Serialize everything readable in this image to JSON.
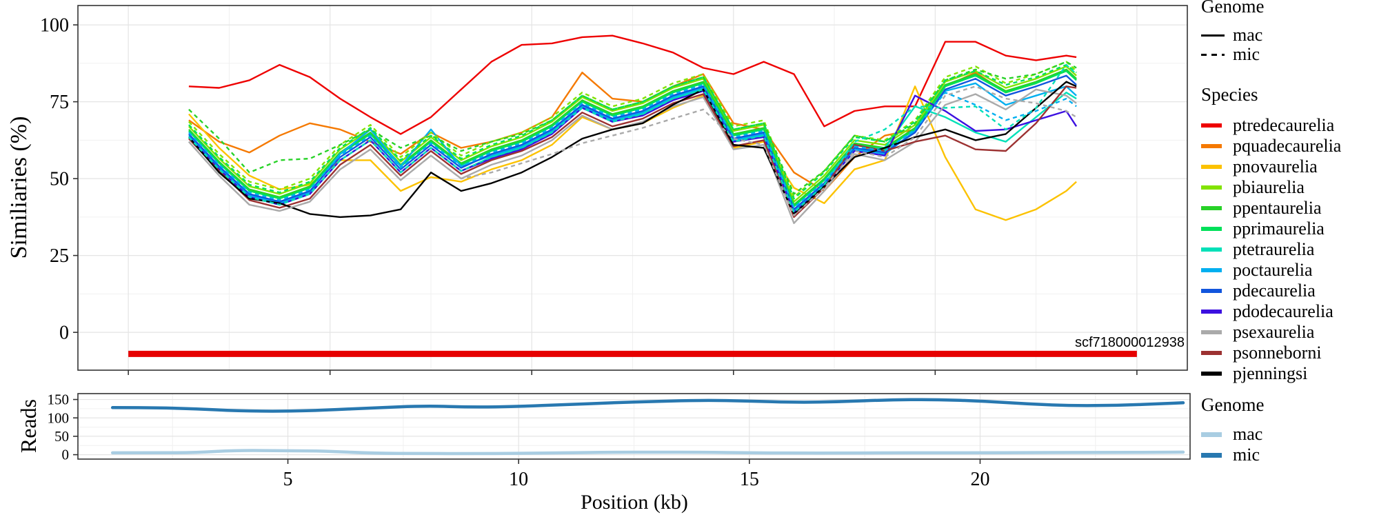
{
  "annotation": {
    "text": "scf718000012938",
    "color": "#e60000"
  },
  "legends": {
    "genome_top": {
      "title": "Genome",
      "items": [
        {
          "label": "mac",
          "style": "solid"
        },
        {
          "label": "mic",
          "style": "dashed"
        }
      ]
    },
    "species": {
      "title": "Species",
      "items": [
        {
          "label": "ptredecaurelia",
          "color": "#ee0000"
        },
        {
          "label": "pquadecaurelia",
          "color": "#f57900"
        },
        {
          "label": "pnovaurelia",
          "color": "#fcc200"
        },
        {
          "label": "pbiaurelia",
          "color": "#82e300"
        },
        {
          "label": "ppentaurelia",
          "color": "#28d228"
        },
        {
          "label": "pprimaurelia",
          "color": "#00e05a"
        },
        {
          "label": "ptetraurelia",
          "color": "#00e0b8"
        },
        {
          "label": "poctaurelia",
          "color": "#00aff0"
        },
        {
          "label": "pdecaurelia",
          "color": "#1155dd"
        },
        {
          "label": "pdodecaurelia",
          "color": "#3c10e0"
        },
        {
          "label": "psexaurelia",
          "color": "#aaaaaa"
        },
        {
          "label": "psonneborni",
          "color": "#9c3131"
        },
        {
          "label": "pjenningsi",
          "color": "#000000"
        }
      ]
    },
    "genome_bottom": {
      "title": "Genome",
      "items": [
        {
          "label": "mac",
          "color": "#a9cde2"
        },
        {
          "label": "mic",
          "color": "#2878b0"
        }
      ]
    }
  },
  "chart_data": [
    {
      "type": "line",
      "panel": "similarity",
      "ylabel": "Similiaries (%)",
      "xlabel": "",
      "y_ticks": [
        0,
        25,
        50,
        75,
        100
      ],
      "y_minor": [
        12.5,
        37.5,
        62.5,
        87.5
      ],
      "x_ticks": [
        0,
        5,
        10,
        15,
        20,
        25
      ],
      "x_minor": [
        2.5,
        7.5,
        12.5,
        17.5,
        22.5
      ],
      "x_tick_labels_shown": false,
      "ylim": [
        -12.3,
        106.3
      ],
      "xlim": [
        -1.25,
        26.25
      ],
      "grid": true,
      "legend_position": "right",
      "x": [
        1.5,
        2.25,
        3,
        3.75,
        4.5,
        5.25,
        6,
        6.75,
        7.5,
        8.25,
        9,
        9.75,
        10.5,
        11.25,
        12,
        12.75,
        13.5,
        14.25,
        15,
        15.75,
        16.5,
        17.25,
        18,
        18.75,
        19.5,
        20.25,
        21,
        21.75,
        22.5,
        23.25,
        23.5
      ],
      "series": [
        {
          "species": "ptredecaurelia",
          "genome": "mac",
          "color": "#ee0000",
          "values": [
            80,
            79.5,
            82,
            87,
            83,
            76,
            70,
            64.5,
            70,
            79,
            88,
            93.5,
            94,
            96,
            96.5,
            94,
            91,
            86,
            84,
            88,
            84,
            67,
            72,
            73.5,
            73.5,
            94.5,
            94.5,
            90,
            88.5,
            90,
            89.5
          ]
        },
        {
          "species": "pquadecaurelia",
          "genome": "mac",
          "color": "#f57900",
          "values": [
            69,
            62,
            58.5,
            64,
            68,
            66,
            62,
            58,
            65,
            60,
            62,
            65,
            70,
            84.5,
            76,
            75,
            80,
            84,
            68,
            66,
            52,
            46,
            57,
            64,
            66,
            80,
            84.5,
            78,
            81,
            85.5,
            82.5
          ]
        },
        {
          "species": "pnovaurelia",
          "genome": "mac",
          "color": "#fcc200",
          "values": [
            71,
            60,
            51,
            46.5,
            48,
            56,
            56,
            46,
            50.5,
            49,
            53,
            56,
            61,
            70,
            66,
            68,
            73,
            77,
            60,
            62,
            47,
            42,
            53,
            56,
            80,
            57,
            40,
            36.5,
            40,
            46,
            49
          ]
        },
        {
          "species": "pbiaurelia",
          "genome": "mac",
          "color": "#82e300",
          "values": [
            67,
            56.5,
            47.5,
            45,
            48.5,
            59.5,
            66,
            55.5,
            63.5,
            56,
            60.5,
            63.5,
            68.5,
            76.5,
            72,
            74.5,
            79.5,
            82.5,
            65.5,
            67.5,
            42.5,
            51,
            62.5,
            61,
            67.5,
            81.5,
            85,
            79.5,
            82.5,
            86.5,
            83.5
          ]
        },
        {
          "species": "ppentaurelia",
          "genome": "mac",
          "color": "#28d228",
          "values": [
            66,
            55.5,
            46.5,
            44,
            47.5,
            58.5,
            65,
            54.5,
            62.5,
            55,
            59.5,
            62.5,
            67.5,
            75.5,
            71,
            73.5,
            78.5,
            81.5,
            64.5,
            66.5,
            41.5,
            50,
            61.5,
            60,
            66.5,
            80.5,
            84,
            78.5,
            81.5,
            85.5,
            82.5
          ]
        },
        {
          "species": "pprimaurelia",
          "genome": "mac",
          "color": "#00e05a",
          "values": [
            65.5,
            55,
            46,
            43.5,
            47,
            58,
            64.5,
            54,
            62,
            54.5,
            59,
            62,
            67,
            75,
            70.5,
            73,
            78,
            81,
            64,
            66,
            41,
            49.5,
            61,
            59.5,
            66,
            80,
            83.5,
            78,
            81,
            85,
            82
          ]
        },
        {
          "species": "ptetraurelia",
          "genome": "mac",
          "color": "#00e0b8",
          "values": [
            63.5,
            53,
            44,
            41.5,
            45,
            56,
            62.5,
            52,
            60,
            52.5,
            57,
            60,
            65,
            73,
            68.5,
            71,
            76,
            79,
            62,
            64,
            39,
            47.5,
            59,
            60,
            73.5,
            70,
            65,
            62,
            70,
            78,
            76
          ]
        },
        {
          "species": "poctaurelia",
          "genome": "mac",
          "color": "#00aff0",
          "values": [
            64,
            53.5,
            44.5,
            42,
            45.5,
            58,
            66,
            54,
            66,
            54,
            57.5,
            60.5,
            65.5,
            73.5,
            69,
            71.5,
            76.5,
            79.5,
            62.5,
            64.5,
            39.5,
            48,
            59.5,
            58,
            65.5,
            78.5,
            81,
            74,
            77,
            80,
            77
          ]
        },
        {
          "species": "pdecaurelia",
          "genome": "mac",
          "color": "#1155dd",
          "values": [
            64.5,
            54,
            45,
            42.5,
            46,
            57,
            63.5,
            53,
            61,
            53.5,
            58,
            61,
            66,
            74,
            69.5,
            72,
            77,
            80,
            63,
            65,
            40,
            48.5,
            60,
            58.5,
            65,
            79,
            82.5,
            77,
            80,
            83.5,
            80.5
          ]
        },
        {
          "species": "pdodecaurelia",
          "genome": "mac",
          "color": "#3c10e0",
          "values": [
            63.5,
            53,
            44,
            41.5,
            45,
            56,
            62.5,
            52,
            60,
            52.5,
            56.5,
            59.5,
            64.5,
            73,
            68.5,
            70.5,
            75.5,
            78.5,
            62,
            63.5,
            39,
            47.5,
            59,
            57.5,
            77,
            72,
            65.5,
            66,
            69,
            72,
            67
          ]
        },
        {
          "species": "psexaurelia",
          "genome": "mac",
          "color": "#aaaaaa",
          "values": [
            62,
            51,
            41.5,
            39.5,
            42.5,
            53,
            59.5,
            49.5,
            57.5,
            50,
            54.5,
            57.5,
            62.5,
            70.5,
            66,
            68.5,
            73.5,
            76.5,
            59.5,
            61,
            35.5,
            46,
            58,
            56,
            62,
            74,
            77.5,
            72.5,
            79,
            77,
            74.5
          ]
        },
        {
          "species": "psonneborni",
          "genome": "mac",
          "color": "#9c3131",
          "values": [
            63,
            52.5,
            43,
            40.5,
            43.5,
            54.5,
            61,
            51,
            59,
            51.5,
            56,
            59,
            63.5,
            71.5,
            67,
            69.5,
            74.5,
            77.5,
            60.5,
            62.5,
            37.5,
            47,
            61,
            59,
            62,
            64,
            59.5,
            59,
            68,
            80,
            79.5
          ]
        },
        {
          "species": "pjenningsi",
          "genome": "mac",
          "color": "#000000",
          "values": [
            63.5,
            52,
            43.5,
            42,
            38.5,
            37.5,
            38,
            40,
            52,
            46,
            48.5,
            52,
            57,
            63,
            66,
            68,
            74,
            79,
            61,
            60,
            38.5,
            47.5,
            57,
            60,
            63.5,
            66,
            62.5,
            64.5,
            73,
            81.5,
            80
          ]
        },
        {
          "species": "pbiaurelia",
          "genome": "mic",
          "color": "#82e300",
          "values": [
            68.5,
            58,
            49,
            46.5,
            50,
            61,
            67.5,
            57,
            65,
            57.5,
            62,
            65,
            70,
            78,
            73.5,
            76,
            81,
            84,
            67,
            69,
            44,
            52.5,
            64,
            62.5,
            69,
            83,
            86.5,
            81,
            84,
            88,
            85
          ]
        },
        {
          "species": "ppentaurelia",
          "genome": "mic",
          "color": "#28d228",
          "values": [
            72.5,
            63,
            52,
            56,
            56.5,
            61,
            66,
            60,
            64,
            59,
            62,
            64.5,
            69,
            77,
            72.5,
            75,
            80,
            83,
            66,
            68,
            45,
            52.5,
            64,
            62,
            68,
            82,
            85.5,
            82.5,
            84,
            88,
            86
          ]
        },
        {
          "species": "pprimaurelia",
          "genome": "mic",
          "color": "#00e05a",
          "values": [
            67.5,
            57,
            48,
            45.5,
            49,
            60,
            66.5,
            56,
            64,
            56.5,
            61,
            64,
            69,
            77,
            72.5,
            75,
            80,
            83,
            66,
            68,
            43.5,
            52,
            63.5,
            62,
            68.5,
            82,
            85,
            80.5,
            83,
            87,
            84.5
          ]
        },
        {
          "species": "ptetraurelia",
          "genome": "mic",
          "color": "#00e0b8",
          "values": [
            63.5,
            53,
            44,
            41.5,
            45,
            56,
            62.5,
            52,
            60,
            52.5,
            57,
            60,
            65,
            73,
            68.5,
            71,
            76,
            79,
            62,
            64,
            39,
            48,
            62,
            66,
            73.5,
            73,
            73.5,
            66,
            73,
            87,
            84
          ]
        },
        {
          "species": "poctaurelia",
          "genome": "mic",
          "color": "#00aff0",
          "values": [
            65,
            54.5,
            45.5,
            43,
            46.5,
            57.5,
            64,
            53.5,
            61.5,
            54,
            58.5,
            61.5,
            66.5,
            74.5,
            70,
            72.5,
            77.5,
            80.5,
            63.5,
            65.5,
            40.5,
            49,
            60.5,
            59,
            66,
            78,
            74,
            69,
            72,
            76,
            73.5
          ]
        },
        {
          "species": "psexaurelia",
          "genome": "mic",
          "color": "#aaaaaa",
          "values": [
            62,
            51,
            41.5,
            39.5,
            42.5,
            53,
            59.5,
            49.5,
            57.5,
            50,
            52,
            55,
            58,
            61.5,
            64,
            66.5,
            69.5,
            72.5,
            63,
            61,
            38,
            47,
            59,
            57,
            63.5,
            77,
            80,
            76,
            74.5,
            72,
            70
          ]
        }
      ],
      "scaffold_bar": {
        "label": "scf718000012938",
        "x_start": 0,
        "x_end": 25,
        "y": -7,
        "color": "#e60000"
      }
    },
    {
      "type": "line",
      "panel": "reads",
      "ylabel": "Reads",
      "xlabel": "Position (kb)",
      "y_ticks": [
        0,
        50,
        100,
        150
      ],
      "y_minor": [
        25,
        75,
        125
      ],
      "x_ticks": [
        5,
        10,
        15,
        20
      ],
      "x_minor": [
        2.5,
        7.5,
        12.5,
        17.5,
        22.5
      ],
      "x_tick_labels_shown": true,
      "ylim": [
        -12,
        166
      ],
      "xlim": [
        0.45,
        24.55
      ],
      "grid": true,
      "series": [
        {
          "genome": "mac",
          "color": "#a9cde2",
          "x": [
            1.2,
            2,
            3,
            3.9,
            5,
            5.8,
            6.8,
            8,
            9,
            10,
            11,
            12,
            13,
            14,
            15,
            16,
            17,
            18,
            19,
            20,
            21,
            22,
            23,
            24,
            24.4
          ],
          "values": [
            5,
            5,
            5.5,
            12,
            10.5,
            10,
            4,
            3,
            3,
            3.5,
            5,
            6.5,
            7,
            6.5,
            5,
            4.5,
            4.5,
            5,
            5,
            5,
            5.5,
            6,
            6,
            6.5,
            7
          ]
        },
        {
          "genome": "mic",
          "color": "#2878b0",
          "x": [
            1.2,
            2,
            3,
            3.9,
            5,
            5.8,
            6.8,
            8,
            9,
            10,
            11,
            12,
            13,
            14,
            15,
            16,
            17,
            18,
            19,
            20,
            21,
            22,
            23,
            24,
            24.4
          ],
          "values": [
            128,
            128,
            125,
            119,
            118,
            121,
            127,
            133,
            129,
            131,
            136,
            141,
            145,
            148,
            146,
            142,
            144,
            149,
            150,
            146,
            138,
            133,
            134,
            139,
            141
          ]
        }
      ]
    }
  ]
}
